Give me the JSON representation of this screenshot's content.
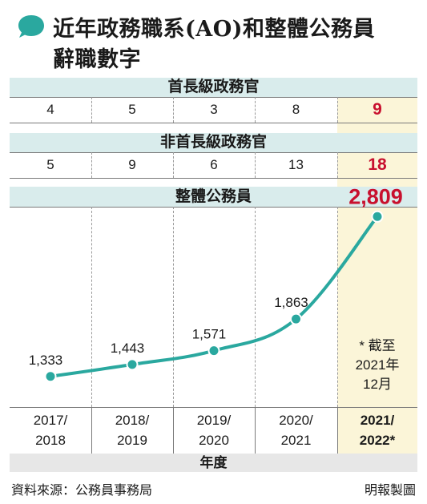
{
  "title": {
    "line1": "近年政務職系(AO)和整體公務員",
    "line2": "辭職數字"
  },
  "colors": {
    "accent": "#2aa89f",
    "highlight_text": "#c8102e",
    "highlight_bg": "#fbf5d8",
    "section_bg": "#d9ecec"
  },
  "chart_data": [
    {
      "type": "table",
      "title": "首長級政務官",
      "categories": [
        "2017/2018",
        "2018/2019",
        "2019/2020",
        "2020/2021",
        "2021/2022*"
      ],
      "values": [
        4,
        5,
        3,
        8,
        9
      ]
    },
    {
      "type": "table",
      "title": "非首長級政務官",
      "categories": [
        "2017/2018",
        "2018/2019",
        "2019/2020",
        "2020/2021",
        "2021/2022*"
      ],
      "values": [
        5,
        9,
        6,
        13,
        18
      ]
    },
    {
      "type": "line",
      "title": "整體公務員",
      "xlabel": "年度",
      "ylabel": "",
      "categories": [
        "2017/2018",
        "2018/2019",
        "2019/2020",
        "2020/2021",
        "2021/2022*"
      ],
      "values": [
        1333,
        1443,
        1571,
        1863,
        2809
      ],
      "data_labels": [
        "1,333",
        "1,443",
        "1,571",
        "1,863",
        "2,809"
      ],
      "ylim": [
        1050,
        2900
      ],
      "grid": false,
      "annotation": [
        "* 截至",
        "2021年",
        "12月"
      ]
    }
  ],
  "x_axis": {
    "ticks": [
      {
        "line1": "2017/",
        "line2": "2018"
      },
      {
        "line1": "2018/",
        "line2": "2019"
      },
      {
        "line1": "2019/",
        "line2": "2020"
      },
      {
        "line1": "2020/",
        "line2": "2021"
      },
      {
        "line1": "2021/",
        "line2": "2022*"
      }
    ],
    "label": "年度"
  },
  "footer": {
    "source": "資料來源：公務員事務局",
    "credit": "明報製圖"
  }
}
